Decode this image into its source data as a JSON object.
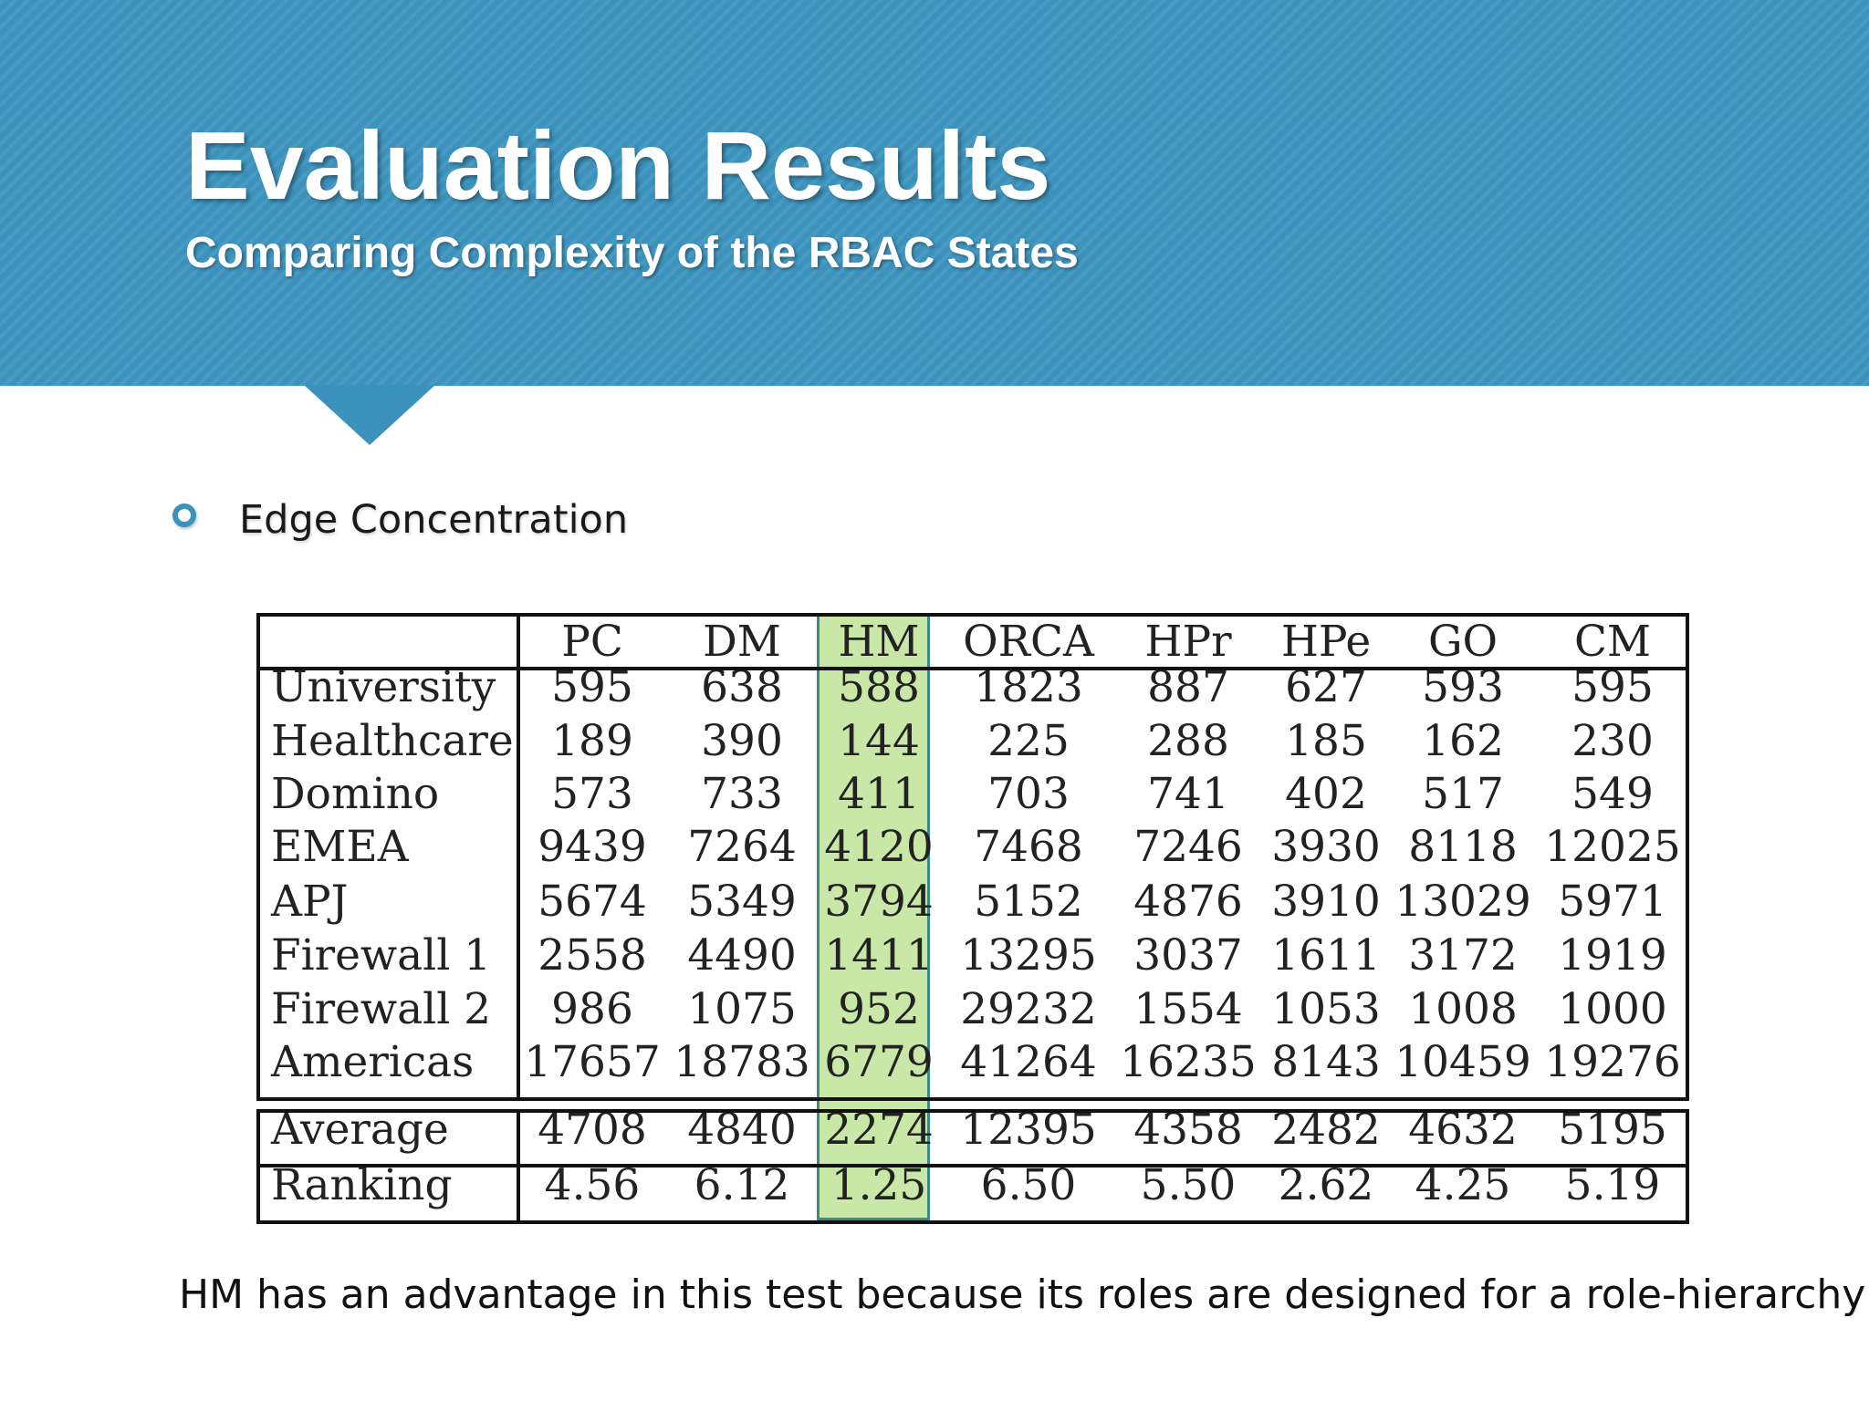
{
  "slide": {
    "title": "Evaluation Results",
    "subtitle": "Comparing Complexity of the RBAC States",
    "bullet": "Edge Concentration",
    "footnote": "HM has an advantage in this test because its roles are designed for a role-hierarchy"
  },
  "colors": {
    "header": "#3b93bd",
    "highlight_fill": "#c9e8a8",
    "highlight_border": "#3a8d86"
  },
  "table": {
    "highlighted_column": "HM",
    "columns": [
      "PC",
      "DM",
      "HM",
      "ORCA",
      "HPr",
      "HPe",
      "GO",
      "CM"
    ],
    "rows": [
      {
        "label": "University",
        "values": [
          "595",
          "638",
          "588",
          "1823",
          "887",
          "627",
          "593",
          "595"
        ]
      },
      {
        "label": "Healthcare",
        "values": [
          "189",
          "390",
          "144",
          "225",
          "288",
          "185",
          "162",
          "230"
        ]
      },
      {
        "label": "Domino",
        "values": [
          "573",
          "733",
          "411",
          "703",
          "741",
          "402",
          "517",
          "549"
        ]
      },
      {
        "label": "EMEA",
        "values": [
          "9439",
          "7264",
          "4120",
          "7468",
          "7246",
          "3930",
          "8118",
          "12025"
        ]
      },
      {
        "label": "APJ",
        "values": [
          "5674",
          "5349",
          "3794",
          "5152",
          "4876",
          "3910",
          "13029",
          "5971"
        ]
      },
      {
        "label": "Firewall 1",
        "values": [
          "2558",
          "4490",
          "1411",
          "13295",
          "3037",
          "1611",
          "3172",
          "1919"
        ]
      },
      {
        "label": "Firewall 2",
        "values": [
          "986",
          "1075",
          "952",
          "29232",
          "1554",
          "1053",
          "1008",
          "1000"
        ]
      },
      {
        "label": "Americas",
        "values": [
          "17657",
          "18783",
          "6779",
          "41264",
          "16235",
          "8143",
          "10459",
          "19276"
        ]
      }
    ],
    "summary": [
      {
        "label": "Average",
        "values": [
          "4708",
          "4840",
          "2274",
          "12395",
          "4358",
          "2482",
          "4632",
          "5195"
        ]
      },
      {
        "label": "Ranking",
        "values": [
          "4.56",
          "6.12",
          "1.25",
          "6.50",
          "5.50",
          "2.62",
          "4.25",
          "5.19"
        ]
      }
    ]
  }
}
